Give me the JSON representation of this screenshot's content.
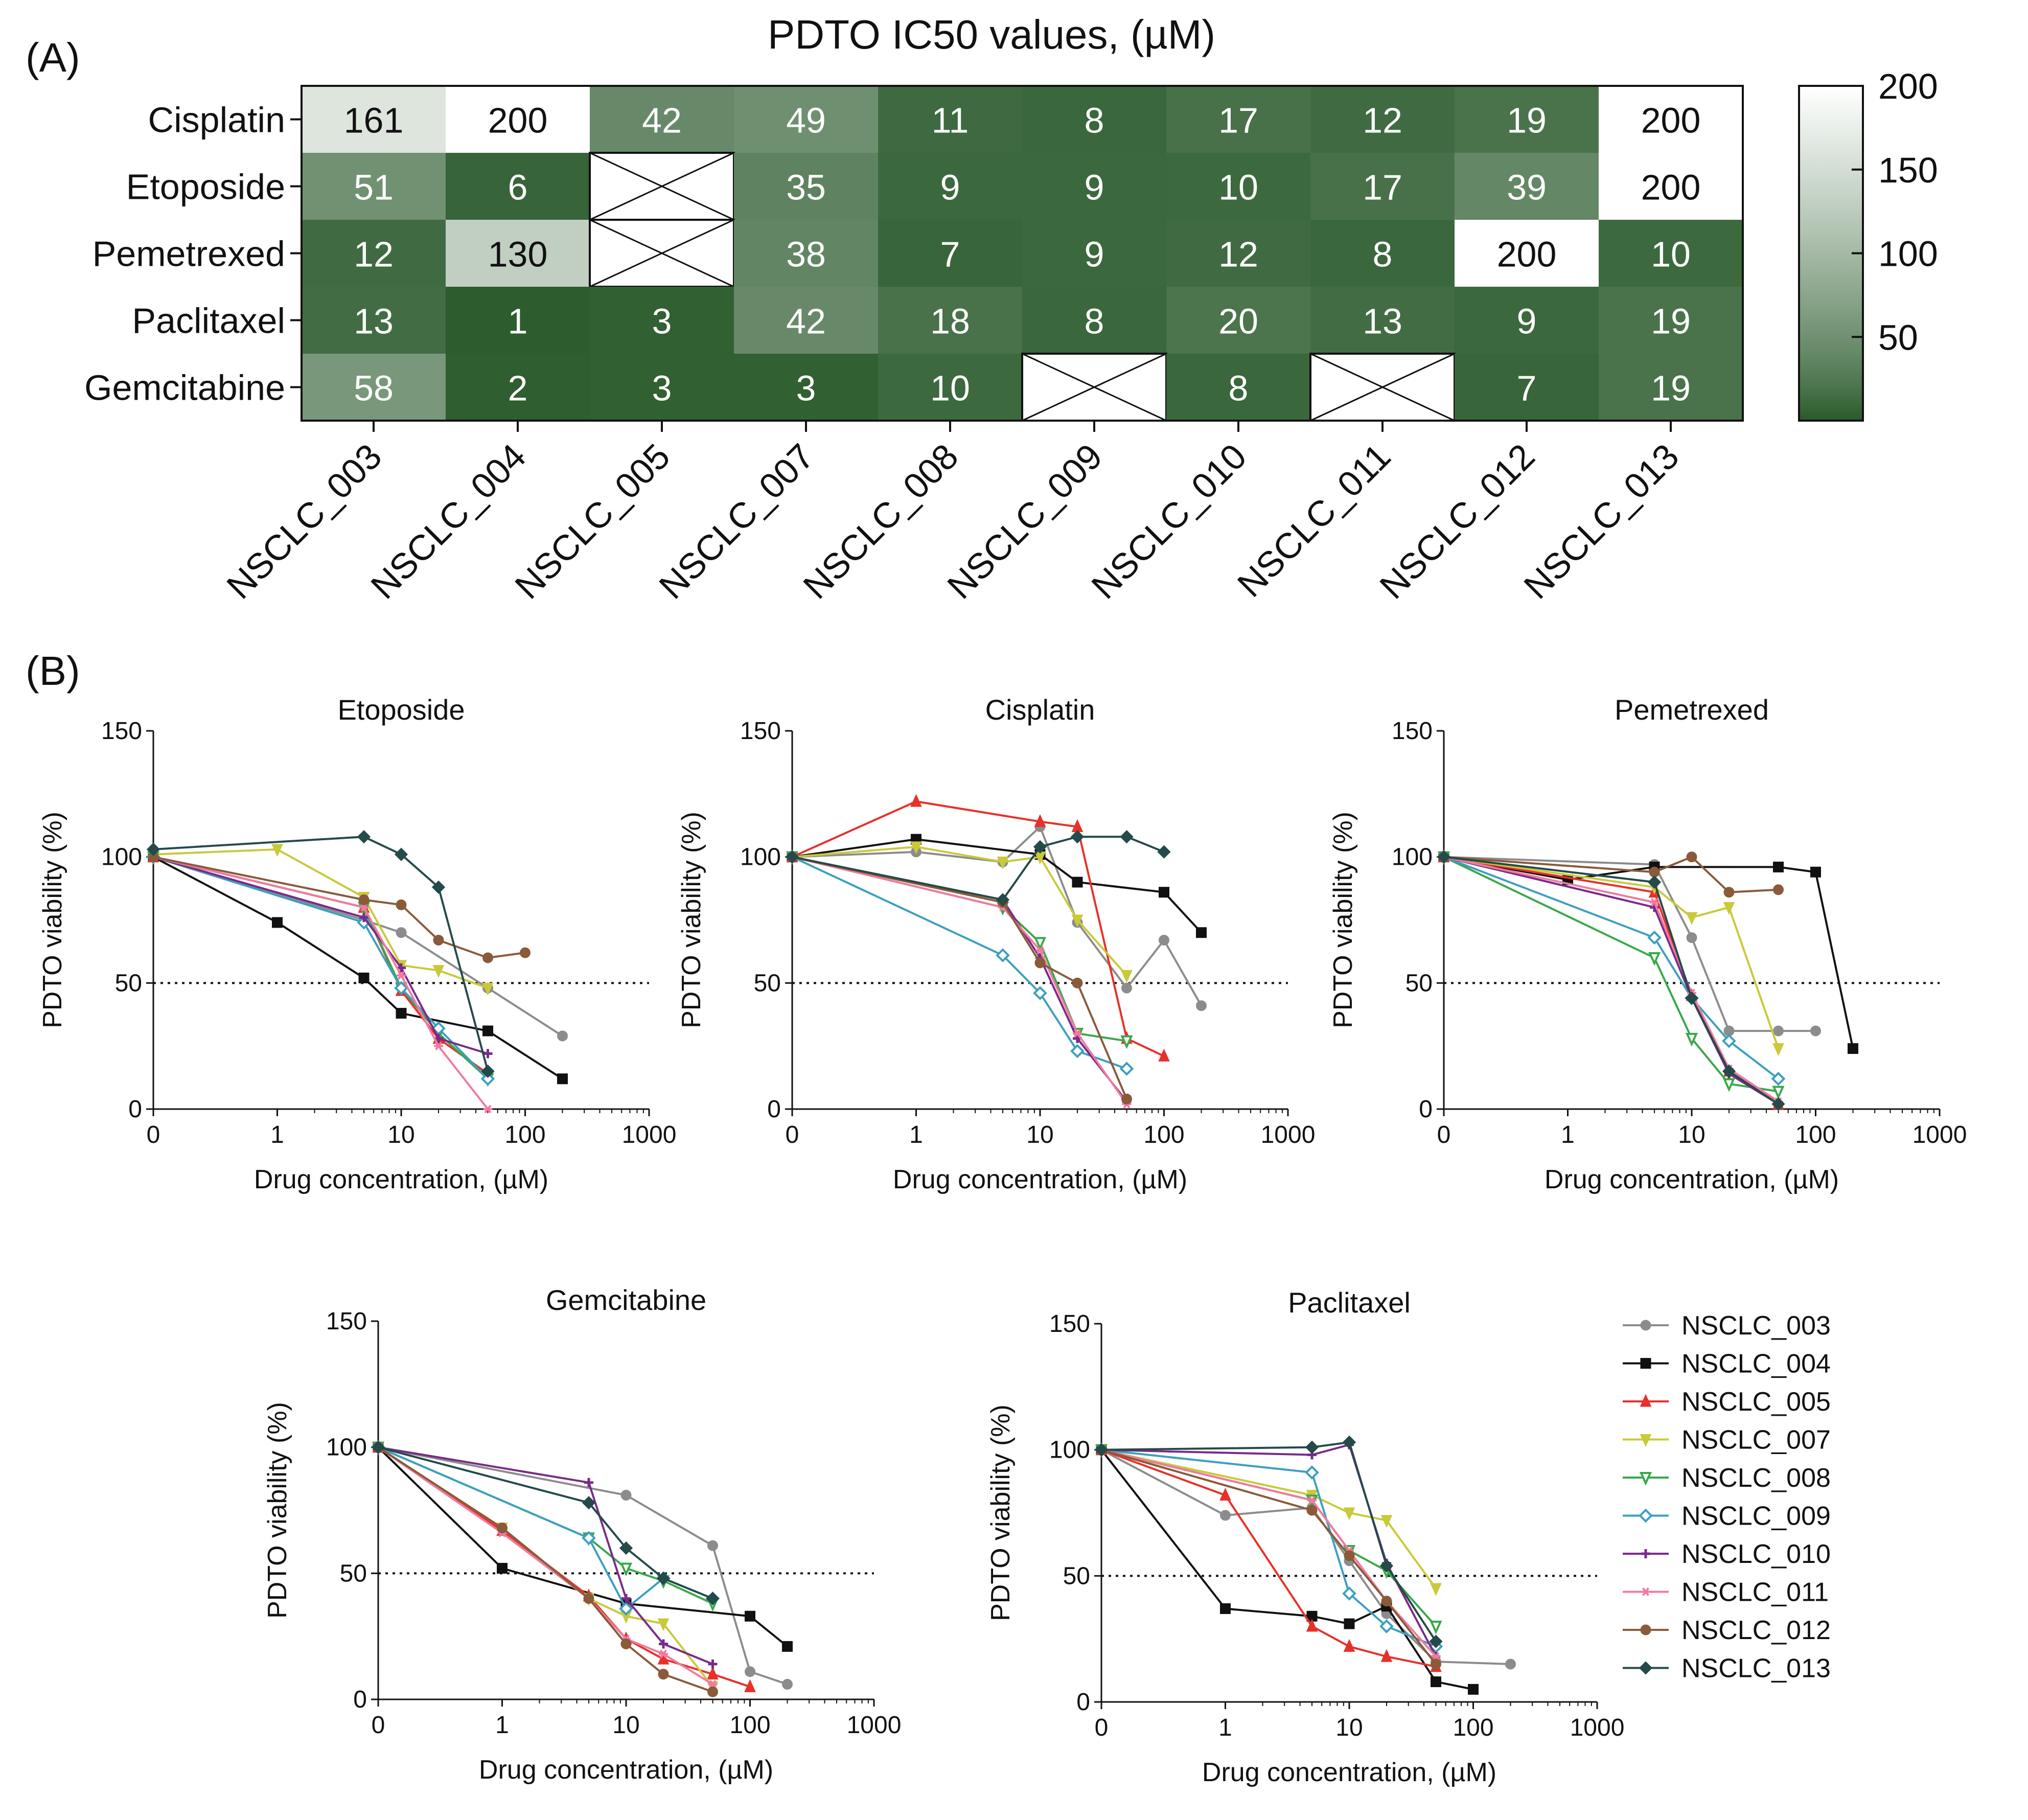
{
  "panel_labels": {
    "a": "(A)",
    "b": "(B)"
  },
  "shared_axis": {
    "xlabel": "Drug concentration, (µM)",
    "ylabel": "PDTO viability (%)",
    "x_ticks": [
      "0",
      "1",
      "10",
      "100",
      "1000"
    ],
    "y_ticks": [
      "0",
      "50",
      "100",
      "150"
    ]
  },
  "legend": [
    "NSCLC_003",
    "NSCLC_004",
    "NSCLC_005",
    "NSCLC_007",
    "NSCLC_008",
    "NSCLC_009",
    "NSCLC_010",
    "NSCLC_011",
    "NSCLC_012",
    "NSCLC_013"
  ],
  "series_styles": [
    {
      "color": "#8c8c8c",
      "marker": "circle"
    },
    {
      "color": "#111111",
      "marker": "square"
    },
    {
      "color": "#e8302a",
      "marker": "triangle-up"
    },
    {
      "color": "#c9c93a",
      "marker": "triangle-down"
    },
    {
      "color": "#3aa84a",
      "marker": "triangle-down-open"
    },
    {
      "color": "#3d9fbf",
      "marker": "diamond-open"
    },
    {
      "color": "#7a2a8a",
      "marker": "plus"
    },
    {
      "color": "#f07aa0",
      "marker": "star"
    },
    {
      "color": "#8a5a3a",
      "marker": "circle"
    },
    {
      "color": "#244a4a",
      "marker": "diamond"
    }
  ],
  "chart_data": [
    {
      "type": "heatmap",
      "title": "PDTO IC50 values, (µM)",
      "rows": [
        "Cisplatin",
        "Etoposide",
        "Pemetrexed",
        "Paclitaxel",
        "Gemcitabine"
      ],
      "columns": [
        "NSCLC_003",
        "NSCLC_004",
        "NSCLC_005",
        "NSCLC_007",
        "NSCLC_008",
        "NSCLC_009",
        "NSCLC_010",
        "NSCLC_011",
        "NSCLC_012",
        "NSCLC_013"
      ],
      "values": [
        [
          161,
          200,
          42,
          49,
          11,
          8,
          17,
          12,
          19,
          200
        ],
        [
          51,
          6,
          null,
          35,
          9,
          9,
          10,
          17,
          39,
          200
        ],
        [
          12,
          130,
          null,
          38,
          7,
          9,
          12,
          8,
          200,
          10
        ],
        [
          13,
          1,
          3,
          42,
          18,
          8,
          20,
          13,
          9,
          19
        ],
        [
          58,
          2,
          3,
          3,
          10,
          null,
          8,
          null,
          7,
          19
        ]
      ],
      "colorbar": {
        "min": 0,
        "max": 200,
        "ticks": [
          "200",
          "150",
          "100",
          "50"
        ],
        "low_color": "#2a5a2c",
        "high_color": "#ffffff"
      },
      "missing": "crossed-out cell"
    },
    {
      "type": "line",
      "title": "Etoposide",
      "x": [
        0,
        1,
        5,
        10,
        20,
        50,
        100,
        200
      ],
      "series": [
        {
          "name": "NSCLC_003",
          "values": [
            100,
            null,
            75,
            70,
            null,
            48,
            null,
            29
          ]
        },
        {
          "name": "NSCLC_004",
          "values": [
            100,
            74,
            52,
            38,
            null,
            31,
            null,
            12
          ]
        },
        {
          "name": "NSCLC_005",
          "values": [
            100,
            null,
            80,
            47,
            28,
            14,
            null,
            null
          ]
        },
        {
          "name": "NSCLC_007",
          "values": [
            101,
            103,
            84,
            57,
            55,
            48,
            null,
            null
          ]
        },
        {
          "name": "NSCLC_008",
          "values": [
            100,
            null,
            80,
            48,
            30,
            12,
            null,
            null
          ]
        },
        {
          "name": "NSCLC_009",
          "values": [
            100,
            null,
            74,
            48,
            32,
            12,
            null,
            null
          ]
        },
        {
          "name": "NSCLC_010",
          "values": [
            100,
            null,
            76,
            56,
            28,
            22,
            null,
            null
          ]
        },
        {
          "name": "NSCLC_011",
          "values": [
            100,
            null,
            80,
            53,
            25,
            0,
            null,
            null
          ]
        },
        {
          "name": "NSCLC_012",
          "values": [
            100,
            null,
            83,
            81,
            67,
            60,
            62,
            null
          ]
        },
        {
          "name": "NSCLC_013",
          "values": [
            103,
            null,
            108,
            101,
            88,
            15,
            null,
            null
          ]
        }
      ]
    },
    {
      "type": "line",
      "title": "Cisplatin",
      "x": [
        0,
        1,
        5,
        10,
        20,
        50,
        100,
        200
      ],
      "series": [
        {
          "name": "NSCLC_003",
          "values": [
            100,
            102,
            98,
            112,
            74,
            48,
            67,
            41
          ]
        },
        {
          "name": "NSCLC_004",
          "values": [
            100,
            107,
            null,
            101,
            90,
            null,
            86,
            70
          ]
        },
        {
          "name": "NSCLC_005",
          "values": [
            100,
            122,
            null,
            114,
            112,
            28,
            21,
            null
          ]
        },
        {
          "name": "NSCLC_007",
          "values": [
            100,
            104,
            98,
            100,
            75,
            53,
            null,
            null
          ]
        },
        {
          "name": "NSCLC_008",
          "values": [
            100,
            null,
            80,
            66,
            30,
            27,
            null,
            null
          ]
        },
        {
          "name": "NSCLC_009",
          "values": [
            100,
            null,
            61,
            46,
            23,
            16,
            null,
            null
          ]
        },
        {
          "name": "NSCLC_010",
          "values": [
            100,
            null,
            83,
            60,
            28,
            3,
            null,
            null
          ]
        },
        {
          "name": "NSCLC_011",
          "values": [
            100,
            null,
            80,
            63,
            30,
            2,
            null,
            null
          ]
        },
        {
          "name": "NSCLC_012",
          "values": [
            100,
            null,
            82,
            58,
            50,
            4,
            null,
            null
          ]
        },
        {
          "name": "NSCLC_013",
          "values": [
            100,
            null,
            83,
            104,
            108,
            108,
            102,
            null
          ]
        }
      ]
    },
    {
      "type": "line",
      "title": "Pemetrexed",
      "x": [
        0,
        1,
        5,
        10,
        20,
        50,
        100,
        200
      ],
      "series": [
        {
          "name": "NSCLC_003",
          "values": [
            100,
            null,
            97,
            68,
            31,
            31,
            31,
            null
          ]
        },
        {
          "name": "NSCLC_004",
          "values": [
            100,
            91,
            96,
            null,
            null,
            96,
            94,
            24
          ]
        },
        {
          "name": "NSCLC_005",
          "values": [
            100,
            null,
            86,
            45,
            15,
            2,
            null,
            null
          ]
        },
        {
          "name": "NSCLC_007",
          "values": [
            100,
            null,
            88,
            76,
            80,
            24,
            null,
            null
          ]
        },
        {
          "name": "NSCLC_008",
          "values": [
            100,
            null,
            60,
            28,
            10,
            7,
            null,
            null
          ]
        },
        {
          "name": "NSCLC_009",
          "values": [
            100,
            null,
            68,
            44,
            27,
            12,
            null,
            null
          ]
        },
        {
          "name": "NSCLC_010",
          "values": [
            100,
            null,
            80,
            44,
            14,
            2,
            null,
            null
          ]
        },
        {
          "name": "NSCLC_011",
          "values": [
            100,
            null,
            82,
            46,
            16,
            3,
            null,
            null
          ]
        },
        {
          "name": "NSCLC_012",
          "values": [
            100,
            null,
            94,
            100,
            86,
            87,
            null,
            null
          ]
        },
        {
          "name": "NSCLC_013",
          "values": [
            100,
            null,
            90,
            44,
            15,
            2,
            null,
            null
          ]
        }
      ]
    },
    {
      "type": "line",
      "title": "Gemcitabine",
      "x": [
        0,
        1,
        5,
        10,
        20,
        50,
        100,
        200
      ],
      "series": [
        {
          "name": "NSCLC_003",
          "values": [
            100,
            null,
            null,
            81,
            null,
            61,
            11,
            6
          ]
        },
        {
          "name": "NSCLC_004",
          "values": [
            100,
            52,
            null,
            38,
            null,
            null,
            33,
            21
          ]
        },
        {
          "name": "NSCLC_005",
          "values": [
            100,
            67,
            41,
            24,
            16,
            10,
            5,
            null
          ]
        },
        {
          "name": "NSCLC_007",
          "values": [
            100,
            68,
            40,
            33,
            30,
            5,
            null,
            null
          ]
        },
        {
          "name": "NSCLC_008",
          "values": [
            100,
            null,
            64,
            52,
            47,
            38,
            null,
            null
          ]
        },
        {
          "name": "NSCLC_009",
          "values": [
            100,
            null,
            64,
            36,
            48,
            40,
            null,
            null
          ]
        },
        {
          "name": "NSCLC_010",
          "values": [
            100,
            null,
            86,
            40,
            22,
            14,
            null,
            null
          ]
        },
        {
          "name": "NSCLC_011",
          "values": [
            100,
            66,
            40,
            24,
            18,
            6,
            null,
            null
          ]
        },
        {
          "name": "NSCLC_012",
          "values": [
            100,
            68,
            40,
            22,
            10,
            3,
            null,
            null
          ]
        },
        {
          "name": "NSCLC_013",
          "values": [
            100,
            null,
            78,
            60,
            48,
            40,
            null,
            null
          ]
        }
      ]
    },
    {
      "type": "line",
      "title": "Paclitaxel",
      "x": [
        0,
        1,
        5,
        10,
        20,
        50,
        100,
        200
      ],
      "series": [
        {
          "name": "NSCLC_003",
          "values": [
            100,
            74,
            77,
            56,
            35,
            16,
            null,
            15
          ]
        },
        {
          "name": "NSCLC_004",
          "values": [
            100,
            37,
            34,
            31,
            38,
            8,
            5,
            null
          ]
        },
        {
          "name": "NSCLC_005",
          "values": [
            100,
            82,
            30,
            22,
            18,
            14,
            null,
            null
          ]
        },
        {
          "name": "NSCLC_007",
          "values": [
            100,
            null,
            82,
            75,
            72,
            45,
            null,
            null
          ]
        },
        {
          "name": "NSCLC_008",
          "values": [
            100,
            null,
            80,
            60,
            52,
            30,
            null,
            null
          ]
        },
        {
          "name": "NSCLC_009",
          "values": [
            100,
            null,
            91,
            43,
            30,
            22,
            null,
            null
          ]
        },
        {
          "name": "NSCLC_010",
          "values": [
            100,
            null,
            98,
            102,
            55,
            18,
            null,
            null
          ]
        },
        {
          "name": "NSCLC_011",
          "values": [
            100,
            null,
            80,
            60,
            40,
            18,
            null,
            null
          ]
        },
        {
          "name": "NSCLC_012",
          "values": [
            100,
            null,
            76,
            58,
            40,
            15,
            null,
            null
          ]
        },
        {
          "name": "NSCLC_013",
          "values": [
            100,
            null,
            101,
            103,
            54,
            24,
            null,
            null
          ]
        }
      ]
    }
  ]
}
